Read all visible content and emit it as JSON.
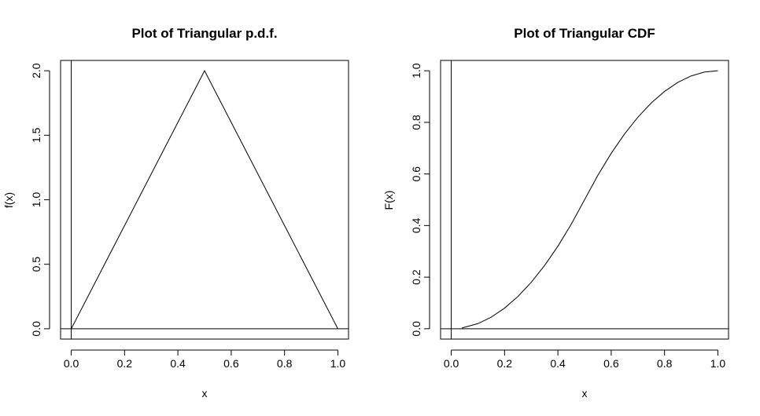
{
  "chart_data": [
    {
      "type": "line",
      "title": "Plot of Triangular p.d.f.",
      "xlabel": "x",
      "ylabel": "f(x)",
      "xlim": [
        -0.04,
        1.04
      ],
      "ylim": [
        -0.08,
        2.08
      ],
      "xticks": [
        0.0,
        0.2,
        0.4,
        0.6,
        0.8,
        1.0
      ],
      "yticks": [
        0.0,
        0.5,
        1.0,
        1.5,
        2.0
      ],
      "xtick_labels": [
        "0.0",
        "0.2",
        "0.4",
        "0.6",
        "0.8",
        "1.0"
      ],
      "ytick_labels": [
        "0.0",
        "0.5",
        "1.0",
        "1.5",
        "2.0"
      ],
      "reference_lines": {
        "h": 0,
        "v": 0
      },
      "grid": false,
      "series": [
        {
          "x": [
            0.0,
            0.1,
            0.2,
            0.3,
            0.4,
            0.5,
            0.6,
            0.7,
            0.8,
            0.9,
            1.0
          ],
          "y": [
            0.0,
            0.4,
            0.8,
            1.2,
            1.6,
            2.0,
            1.6,
            1.2,
            0.8,
            0.4,
            0.0
          ]
        }
      ]
    },
    {
      "type": "line",
      "title": "Plot of Triangular CDF",
      "xlabel": "x",
      "ylabel": "F(x)",
      "xlim": [
        -0.04,
        1.04
      ],
      "ylim": [
        -0.04,
        1.04
      ],
      "xticks": [
        0.0,
        0.2,
        0.4,
        0.6,
        0.8,
        1.0
      ],
      "yticks": [
        0.0,
        0.2,
        0.4,
        0.6,
        0.8,
        1.0
      ],
      "xtick_labels": [
        "0.0",
        "0.2",
        "0.4",
        "0.6",
        "0.8",
        "1.0"
      ],
      "ytick_labels": [
        "0.0",
        "0.2",
        "0.4",
        "0.6",
        "0.8",
        "1.0"
      ],
      "reference_lines": {
        "h": 0,
        "v": 0
      },
      "grid": false,
      "series": [
        {
          "x": [
            0.04,
            0.1,
            0.15,
            0.2,
            0.25,
            0.3,
            0.35,
            0.4,
            0.45,
            0.5,
            0.55,
            0.6,
            0.65,
            0.7,
            0.75,
            0.8,
            0.85,
            0.9,
            0.95,
            1.0
          ],
          "y": [
            0.003,
            0.02,
            0.045,
            0.08,
            0.125,
            0.18,
            0.245,
            0.32,
            0.405,
            0.5,
            0.595,
            0.68,
            0.755,
            0.82,
            0.875,
            0.92,
            0.955,
            0.98,
            0.995,
            1.0
          ]
        }
      ]
    }
  ]
}
